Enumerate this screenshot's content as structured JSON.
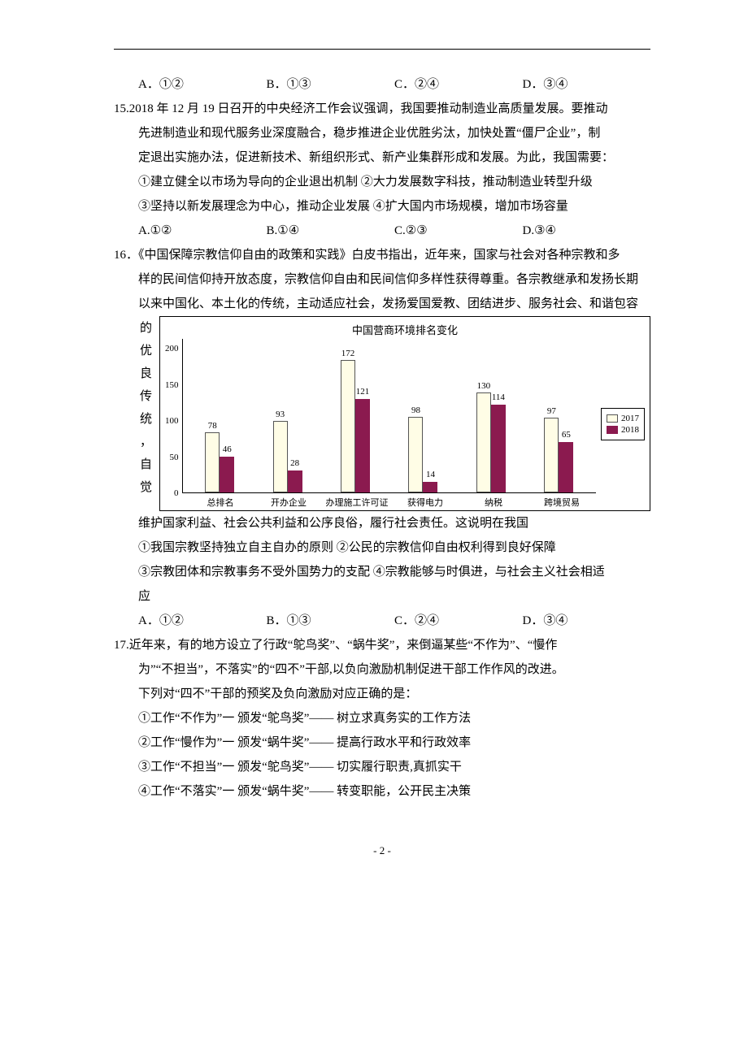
{
  "options_row": {
    "a": "A．①②",
    "b": "B．①③",
    "c": "C．②④",
    "d": "D．③④"
  },
  "q15": {
    "l1": "15.2018 年 12 月 19 日召开的中央经济工作会议强调，我国要推动制造业高质量发展。要推动",
    "l2": "先进制造业和现代服务业深度融合，稳步推进企业优胜劣汰，加快处置“僵尸企业”，制",
    "l3": "定退出实施办法，促进新技术、新组织形式、新产业集群形成和发展。为此，我国需要：",
    "l4": "①建立健全以市场为导向的企业退出机制  ②大力发展数字科技，推动制造业转型升级",
    "l5": "③坚持以新发展理念为中心，推动企业发展    ④扩大国内市场规模，增加市场容量",
    "opts": {
      "a": "A.①②",
      "b": "B.①④",
      "c": "C.②③",
      "d": "D.③④"
    }
  },
  "q16": {
    "l1": "16．《中国保障宗教信仰自由的政策和实践》白皮书指出，近年来，国家与社会对各种宗教和多",
    "l2": "样的民间信仰持开放态度，宗教信仰自由和民间信仰多样性获得尊重。各宗教继承和发扬长期",
    "l3": "以来中国化、本土化的传统，主动适应社会，发扬爱国爱教、团结进步、服务社会、和谐包容",
    "vcol": [
      "的",
      "优",
      "良",
      "传",
      "统",
      "，",
      "自",
      "觉"
    ],
    "l4": "维护国家利益、社会公共利益和公序良俗，履行社会责任。这说明在我国",
    "l5": "①我国宗教坚持独立自主自办的原则            ②公民的宗教信仰自由权利得到良好保障",
    "l6": "③宗教团体和宗教事务不受外国势力的支配    ④宗教能够与时俱进，与社会主义社会相适",
    "l7": "应"
  },
  "chart": {
    "title": "中国营商环境排名变化",
    "ymax": 200,
    "yticks": [
      "200",
      "150",
      "100",
      "50",
      "0"
    ],
    "categories": [
      "总排名",
      "开办企业",
      "办理施工许可证",
      "获得电力",
      "纳税",
      "跨境贸易"
    ],
    "series": [
      {
        "name": "2017",
        "color": "#fffde6",
        "border": "#555555",
        "values": [
          78,
          93,
          172,
          98,
          130,
          97
        ]
      },
      {
        "name": "2018",
        "color": "#8b1a4f",
        "border": "#8b1a4f",
        "values": [
          46,
          28,
          121,
          14,
          114,
          65
        ]
      }
    ],
    "legend": [
      "2017",
      "2018"
    ]
  },
  "q17": {
    "l1": "17.近年来，有的地方设立了行政“鸵鸟奖”、“蜗牛奖”，来倒逼某些“不作为”、“慢作",
    "l2": "为”“不担当”，不落实”的“四不”干部,以负向激励机制促进干部工作作风的改进。",
    "l3": "下列对“四不”干部的预奖及负向激励对应正确的是：",
    "l4": "①工作“不作为”一    颁发“鸵鸟奖”——  树立求真务实的工作方法",
    "l5": "②工作“慢作为”一    颁发“蜗牛奖”——  提高行政水平和行政效率",
    "l6": "③工作“不担当”一    颁发“鸵鸟奖”——  切实履行职责,真抓实干",
    "l7": "④工作“不落实”一    颁发“蜗牛奖”——  转变职能，公开民主决策"
  },
  "footer": "- 2 -"
}
